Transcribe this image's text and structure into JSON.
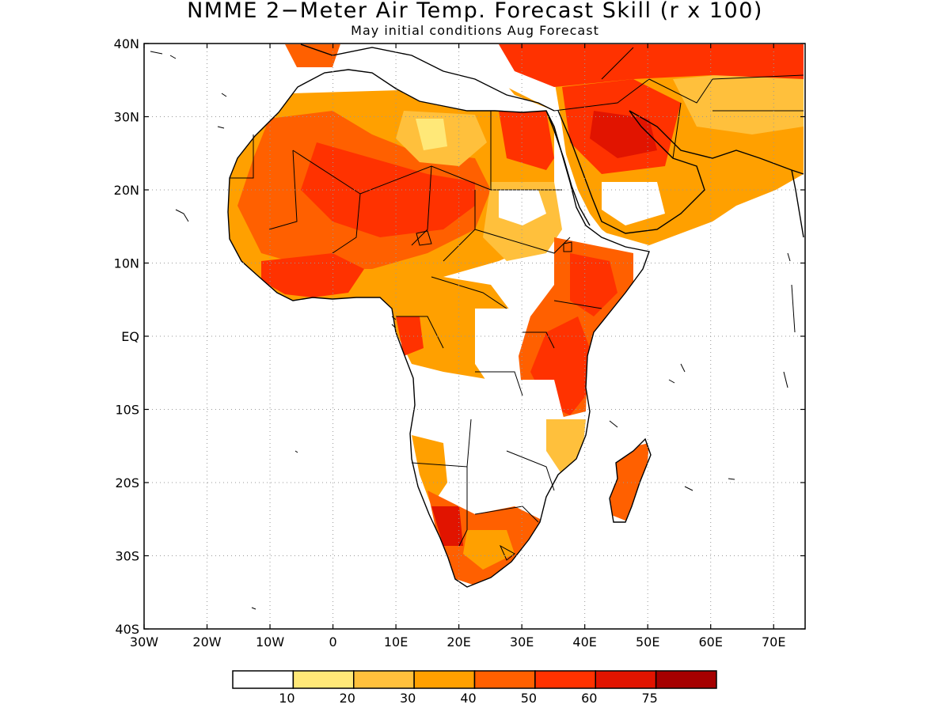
{
  "title": "NMME 2−Meter Air Temp. Forecast Skill (r x 100)",
  "subtitle": "May initial conditions  Aug Forecast",
  "map": {
    "lon_range": [
      -30,
      75
    ],
    "lat_range": [
      -40,
      40
    ],
    "lat_ticks": [
      {
        "value": 40,
        "label": "40N"
      },
      {
        "value": 30,
        "label": "30N"
      },
      {
        "value": 20,
        "label": "20N"
      },
      {
        "value": 10,
        "label": "10N"
      },
      {
        "value": 0,
        "label": "EQ"
      },
      {
        "value": -10,
        "label": "10S"
      },
      {
        "value": -20,
        "label": "20S"
      },
      {
        "value": -30,
        "label": "30S"
      },
      {
        "value": -40,
        "label": "40S"
      }
    ],
    "lon_ticks": [
      {
        "value": -30,
        "label": "30W"
      },
      {
        "value": -20,
        "label": "20W"
      },
      {
        "value": -10,
        "label": "10W"
      },
      {
        "value": 0,
        "label": "0"
      },
      {
        "value": 10,
        "label": "10E"
      },
      {
        "value": 20,
        "label": "20E"
      },
      {
        "value": 30,
        "label": "30E"
      },
      {
        "value": 40,
        "label": "40E"
      },
      {
        "value": 50,
        "label": "50E"
      },
      {
        "value": 60,
        "label": "60E"
      },
      {
        "value": 70,
        "label": "70E"
      }
    ],
    "gridlines": true
  },
  "colorbar": {
    "colors": [
      "#ffffff",
      "#ffe878",
      "#ffc03c",
      "#ffa000",
      "#ff6000",
      "#ff3200",
      "#e11400",
      "#a50000"
    ],
    "labels": [
      "10",
      "20",
      "30",
      "40",
      "50",
      "60",
      "75"
    ]
  }
}
